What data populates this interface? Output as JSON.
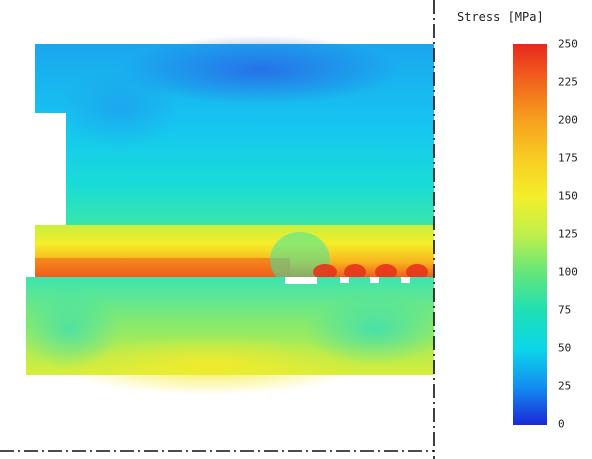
{
  "legend": {
    "title": "Stress [MPa]",
    "ticks": [
      "250",
      "225",
      "200",
      "175",
      "150",
      "125",
      "100",
      "75",
      "50",
      "25",
      "0"
    ],
    "min": 0,
    "max": 250
  },
  "colors": {
    "low": "#1a28d8",
    "mid": "#64e67a",
    "high": "#e8281e",
    "axis_line": "#111111"
  }
}
